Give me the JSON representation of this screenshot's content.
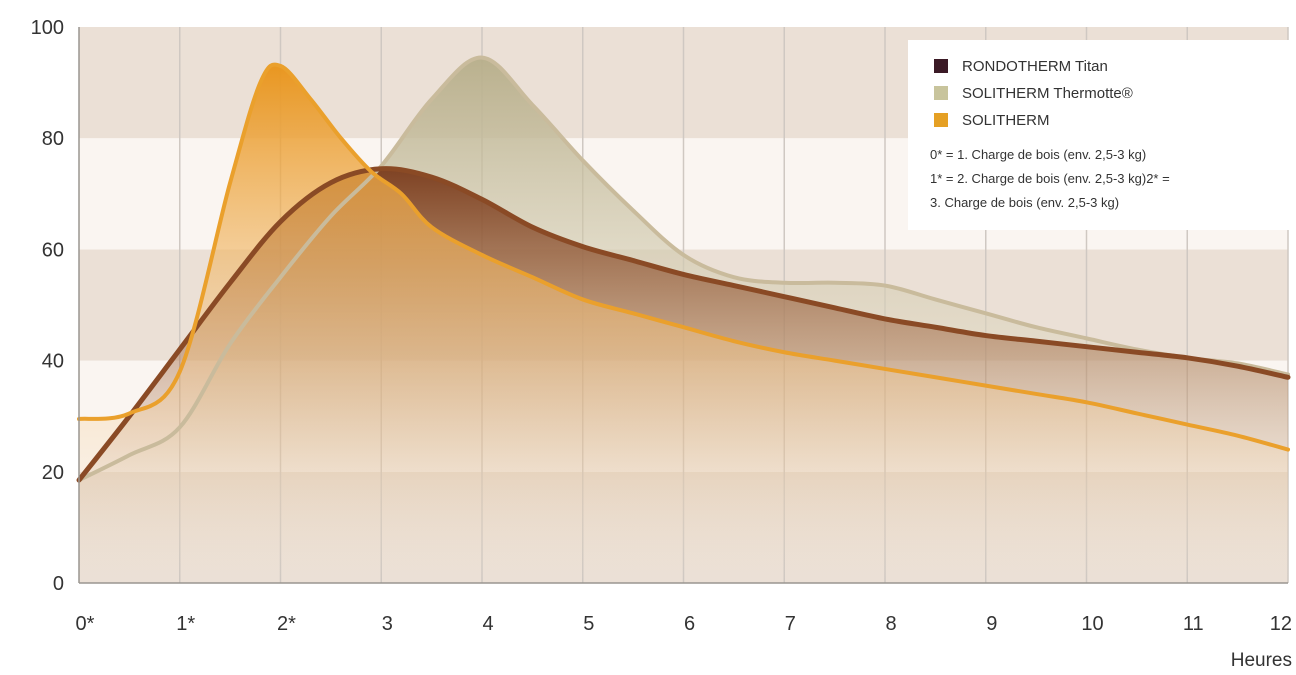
{
  "chart_data": {
    "type": "area",
    "title": "",
    "xlabel": "Heures",
    "ylabel": "",
    "xlim": [
      0,
      12
    ],
    "ylim": [
      0,
      100
    ],
    "x_ticks": [
      0,
      1,
      2,
      3,
      4,
      5,
      6,
      7,
      8,
      9,
      10,
      11,
      12
    ],
    "x_tick_labels": [
      "0*",
      "1*",
      "2*",
      "3",
      "4",
      "5",
      "6",
      "7",
      "8",
      "9",
      "10",
      "11",
      "12"
    ],
    "y_ticks": [
      0,
      20,
      40,
      60,
      80,
      100
    ],
    "y_tick_labels": [
      "0",
      "20",
      "40",
      "60",
      "80",
      "100"
    ],
    "grid": "vertical lines at each hour; horizontal alternating bands every 20",
    "legend_position": "top-right",
    "series": [
      {
        "name": "RONDOTHERM Titan",
        "color": "#3b1a26",
        "line_color": "#8a4a25",
        "x": [
          0,
          0.5,
          1,
          1.5,
          2,
          2.5,
          3,
          3.5,
          4,
          4.5,
          5,
          5.5,
          6,
          6.5,
          7,
          7.5,
          8,
          8.5,
          9,
          9.5,
          10,
          10.5,
          11,
          11.5,
          12
        ],
        "y": [
          18.5,
          30,
          42,
          54,
          65,
          72,
          74.5,
          73,
          69,
          64,
          60.5,
          58,
          55.5,
          53.5,
          51.5,
          49.5,
          47.5,
          46,
          44.5,
          43.5,
          42.5,
          41.5,
          40.5,
          39,
          37
        ]
      },
      {
        "name": "SOLITHERM Thermotte®",
        "color": "#c8c49c",
        "line_color": "#c9bb9c",
        "x": [
          0,
          0.5,
          1,
          1.5,
          2,
          2.5,
          3,
          3.5,
          4,
          4.5,
          5,
          5.5,
          6,
          6.5,
          7,
          7.5,
          8,
          8.5,
          9,
          9.5,
          10,
          10.5,
          11,
          11.5,
          12
        ],
        "y": [
          18.5,
          23,
          28,
          43,
          55,
          66,
          75,
          87,
          94.5,
          86,
          76,
          67,
          59,
          55,
          54,
          54,
          53.5,
          51,
          48.5,
          46,
          44,
          42,
          40.5,
          39.5,
          37.5
        ]
      },
      {
        "name": "SOLITHERM",
        "color": "#e5a024",
        "line_color": "#eaa02c",
        "x": [
          0,
          0.5,
          1,
          1.5,
          1.8,
          2,
          2.3,
          2.6,
          2.9,
          3.2,
          3.5,
          4,
          4.5,
          5,
          5.5,
          6,
          6.5,
          7,
          7.5,
          8,
          8.5,
          9,
          9.5,
          10,
          10.5,
          11,
          11.5,
          12
        ],
        "y": [
          29.5,
          30.5,
          38,
          72,
          90,
          93,
          87,
          80,
          74,
          70,
          64,
          59,
          55,
          51,
          48.5,
          46,
          43.5,
          41.5,
          40,
          38.5,
          37,
          35.5,
          34,
          32.5,
          30.5,
          28.5,
          26.5,
          24
        ]
      }
    ],
    "annotations": [
      "0* = 1. Charge de bois (env. 2,5-3 kg)",
      "1* = 2. Charge de bois (env. 2,5-3 kg)2* =",
      "3. Charge de bois (env. 2,5-3 kg)"
    ]
  },
  "colors": {
    "band_dark": "#ebe0d6",
    "band_light": "#faf5f1",
    "grid_line": "#cfc8c2",
    "axis_line": "#9a9690",
    "axis_text": "#333333"
  }
}
